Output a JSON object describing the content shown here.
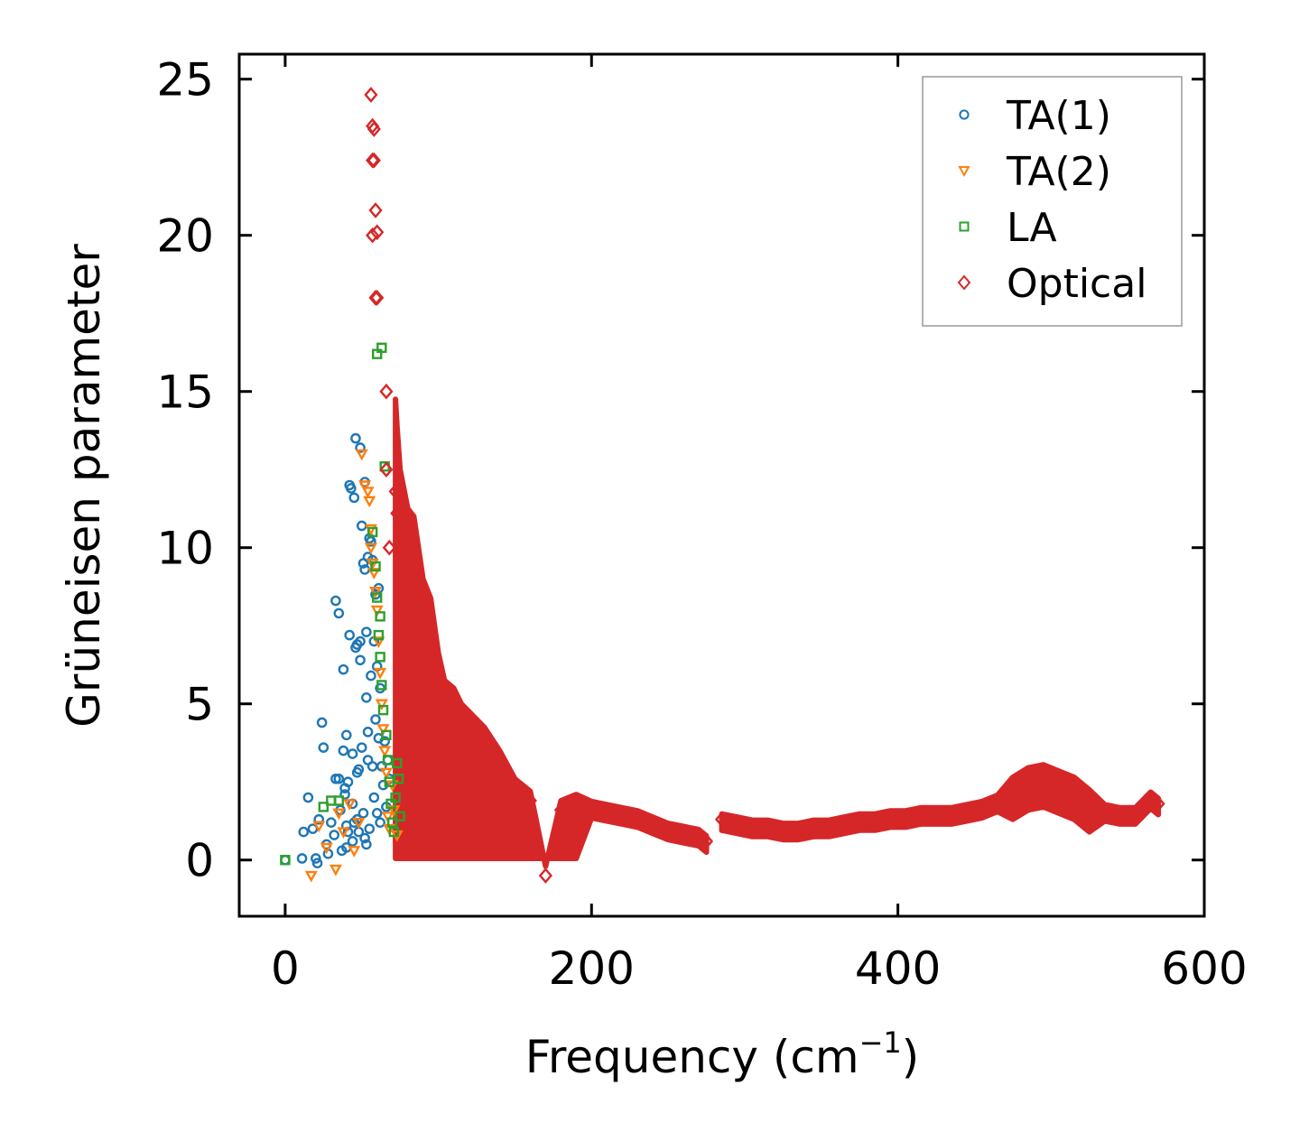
{
  "chart_data": {
    "type": "scatter",
    "title": "",
    "xlabel": "Frequency (cm",
    "xlabel_superscript": "−1",
    "xlabel_suffix": ")",
    "ylabel": "Grüneisen parameter",
    "xlim": [
      -30,
      600
    ],
    "ylim": [
      -1.8,
      25.8
    ],
    "xticks": [
      0,
      200,
      400,
      600
    ],
    "yticks": [
      0,
      5,
      10,
      15,
      20,
      25
    ],
    "xtick_labels": [
      "0",
      "200",
      "400",
      "600"
    ],
    "ytick_labels": [
      "0",
      "5",
      "10",
      "15",
      "20",
      "25"
    ],
    "grid": false,
    "legend_position": "top-right",
    "series": [
      {
        "name": "TA(1)",
        "marker": "circle",
        "color": "#1f77b4",
        "x": [
          0,
          11,
          12,
          15,
          18,
          20,
          21,
          22,
          24,
          25,
          27,
          28,
          30,
          32,
          33,
          35,
          36,
          37,
          38,
          39,
          40,
          40,
          41,
          42,
          42,
          43,
          44,
          44,
          45,
          46,
          46,
          47,
          47,
          48,
          48,
          49,
          49,
          50,
          50,
          51,
          51,
          52,
          52,
          53,
          53,
          54,
          54,
          55,
          55,
          56,
          56,
          57,
          57,
          58,
          58,
          59,
          59,
          60,
          60,
          61,
          61,
          62,
          62,
          63,
          64,
          65,
          66,
          67,
          68,
          33,
          35,
          38,
          40,
          44,
          47,
          49,
          53,
          45,
          52,
          39,
          41,
          54
        ],
        "y": [
          0.0,
          0.05,
          0.9,
          2.0,
          1.0,
          0.05,
          -0.1,
          1.3,
          4.4,
          3.6,
          0.5,
          0.2,
          1.2,
          0.8,
          2.6,
          2.6,
          1.6,
          0.3,
          3.5,
          2.3,
          1.1,
          0.4,
          2.5,
          7.2,
          12.0,
          11.9,
          1.8,
          0.6,
          11.6,
          6.8,
          13.5,
          6.9,
          1.3,
          2.9,
          0.9,
          7.0,
          13.2,
          10.7,
          3.6,
          9.5,
          1.5,
          9.3,
          12.1,
          7.3,
          0.5,
          9.7,
          3.2,
          10.3,
          1.0,
          10.2,
          5.9,
          3.0,
          9.6,
          2.0,
          7.0,
          4.5,
          8.5,
          1.5,
          6.2,
          8.7,
          3.9,
          5.5,
          1.2,
          3.0,
          2.4,
          3.8,
          1.7,
          3.2,
          2.6,
          8.3,
          7.9,
          6.1,
          4.0,
          3.4,
          2.8,
          6.4,
          5.2,
          1.2,
          0.7,
          2.1,
          0.9,
          4.1
        ]
      },
      {
        "name": "TA(2)",
        "marker": "triangle-down",
        "color": "#ff7f0e",
        "x": [
          17,
          22,
          27,
          33,
          35,
          38,
          42,
          45,
          48,
          50,
          52,
          54,
          55,
          56,
          57,
          58,
          60,
          61,
          62,
          63,
          64,
          65,
          66,
          67,
          68,
          70,
          71,
          73,
          56,
          59
        ],
        "y": [
          -0.5,
          1.1,
          0.4,
          -0.3,
          1.5,
          0.9,
          1.8,
          0.3,
          1.2,
          13.0,
          12.0,
          11.8,
          11.5,
          10.0,
          9.5,
          9.2,
          8.0,
          7.0,
          6.0,
          5.0,
          4.2,
          3.5,
          2.8,
          1.4,
          1.0,
          2.4,
          1.6,
          0.8,
          10.6,
          8.6
        ]
      },
      {
        "name": "LA",
        "marker": "square",
        "color": "#2ca02c",
        "x": [
          0,
          25,
          30,
          35,
          57,
          59,
          60,
          61,
          62,
          63,
          63,
          64,
          65,
          66,
          67,
          68,
          69,
          70,
          71,
          72,
          73,
          74,
          75,
          60,
          62
        ],
        "y": [
          0.0,
          1.7,
          1.9,
          1.9,
          10.5,
          9.4,
          8.4,
          7.2,
          6.5,
          5.6,
          16.4,
          4.8,
          12.6,
          4.0,
          3.2,
          2.5,
          1.8,
          1.2,
          0.9,
          2.0,
          3.1,
          2.6,
          1.4,
          16.2,
          7.8
        ]
      },
      {
        "name": "Optical",
        "marker": "diamond",
        "color": "#d62728",
        "x": [
          56,
          57,
          58,
          58,
          57,
          59,
          57,
          60,
          59,
          60,
          66,
          66,
          68,
          72,
          73,
          75,
          80,
          84,
          90,
          95,
          100,
          104,
          110,
          115,
          120,
          130,
          140,
          150,
          160,
          170,
          180,
          190,
          200,
          210,
          220,
          230,
          240,
          250,
          260,
          270,
          275,
          285,
          295,
          305,
          315,
          325,
          335,
          345,
          355,
          365,
          375,
          385,
          395,
          405,
          415,
          425,
          435,
          445,
          455,
          465,
          475,
          485,
          495,
          505,
          515,
          525,
          535,
          545,
          555,
          565,
          570
        ],
        "y": [
          24.5,
          23.5,
          23.4,
          22.4,
          22.4,
          20.8,
          20.0,
          20.1,
          18.0,
          18.0,
          15.0,
          12.5,
          10.0,
          11.8,
          11.1,
          10.0,
          9.0,
          8.8,
          7.2,
          6.7,
          5.3,
          4.6,
          4.4,
          4.0,
          3.8,
          3.4,
          2.8,
          2.3,
          1.9,
          -0.5,
          1.6,
          1.8,
          1.7,
          1.6,
          1.5,
          1.4,
          1.2,
          1.0,
          0.9,
          0.8,
          0.6,
          1.3,
          1.2,
          1.1,
          1.1,
          1.0,
          1.0,
          1.1,
          1.1,
          1.2,
          1.3,
          1.3,
          1.4,
          1.4,
          1.5,
          1.5,
          1.5,
          1.6,
          1.7,
          1.9,
          2.2,
          2.5,
          2.6,
          2.4,
          2.2,
          1.8,
          1.6,
          1.5,
          1.5,
          2.0,
          1.8
        ]
      }
    ]
  }
}
